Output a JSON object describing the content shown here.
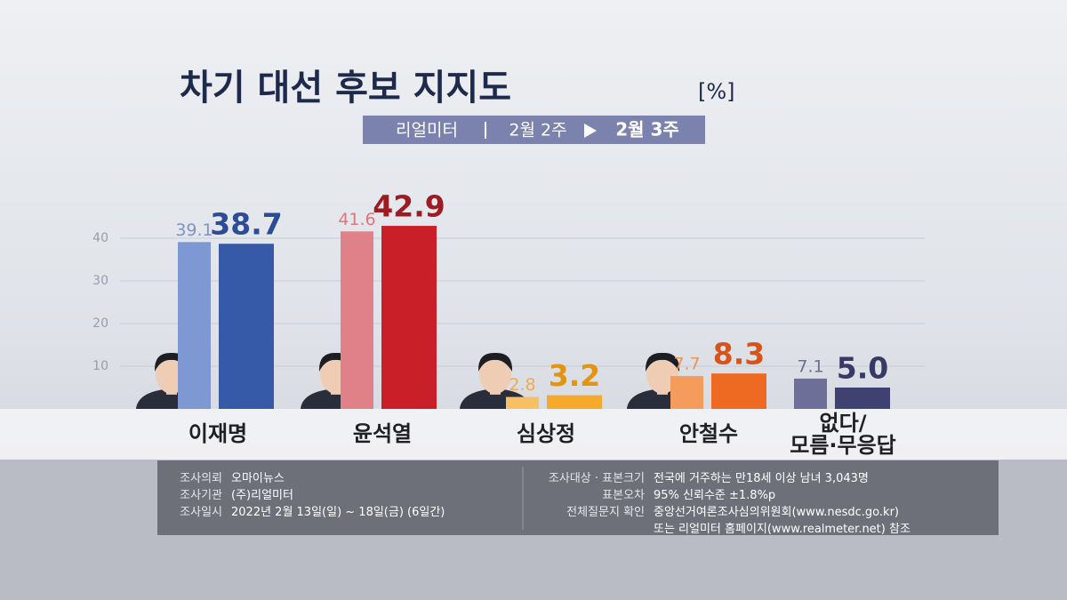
{
  "chart_data": {
    "type": "bar",
    "title": "차기 대선 후보 지지도",
    "unit": "[%]",
    "source": "리얼미터",
    "categories": [
      "이재명",
      "윤석열",
      "심상정",
      "안철수",
      "없다/\n모름·무응답"
    ],
    "series": [
      {
        "name": "2월 2주",
        "colors": [
          "#7e98d4",
          "#e08088",
          "#f7c062",
          "#f59c5c",
          "#6e6f99"
        ],
        "label_colors": [
          "#7f93c9",
          "#d9787e",
          "#eeaa52",
          "#ee9452",
          "#6d6f93"
        ],
        "values": [
          39.1,
          41.6,
          2.8,
          7.7,
          7.1
        ]
      },
      {
        "name": "2월 3주",
        "colors": [
          "#3659a8",
          "#c81f28",
          "#f6a92a",
          "#ee6a22",
          "#3f4270"
        ],
        "label_colors": [
          "#2d4c96",
          "#9c1c22",
          "#e39410",
          "#d6541a",
          "#373a66"
        ],
        "values": [
          38.7,
          42.9,
          3.2,
          8.3,
          5.0
        ],
        "value_labels": [
          "38.7",
          "42.9",
          "3.2",
          "8.3",
          "5.0"
        ]
      }
    ],
    "ylim": [
      0,
      45
    ],
    "yticks": [
      10,
      20,
      30,
      40
    ],
    "grid": true
  },
  "survey_info": {
    "left": [
      {
        "label": "조사의뢰",
        "value": "오마이뉴스"
      },
      {
        "label": "조사기관",
        "value": "(주)리얼미터"
      },
      {
        "label": "조사일시",
        "value": "2022년 2월 13일(일) ~ 18일(금) (6일간)"
      }
    ],
    "right": [
      {
        "label": "조사대상 · 표본크기",
        "value": "전국에 거주하는 만18세 이상 남녀 3,043명"
      },
      {
        "label": "표본오차",
        "value": "95% 신뢰수준 ±1.8%p"
      },
      {
        "label": "전체질문지 확인",
        "value": "중앙선거여론조사심의위원회(www.nesdc.go.kr)"
      },
      {
        "label": null,
        "value": "또는 리얼미터 홈페이지(www.realmeter.net) 참조"
      }
    ]
  }
}
